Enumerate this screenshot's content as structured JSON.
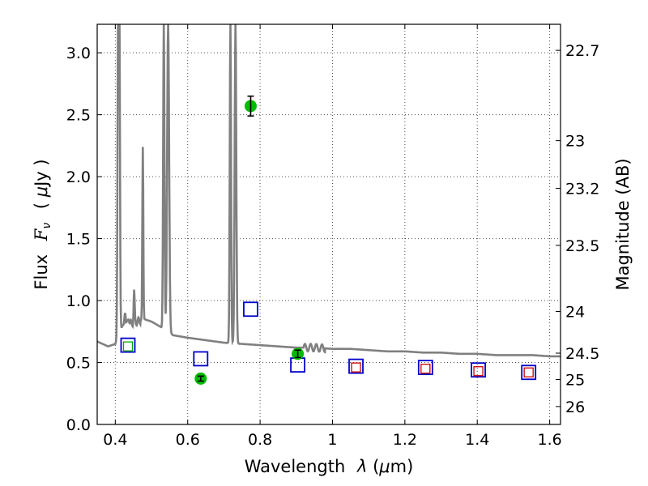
{
  "chart_data": {
    "type": "scatter",
    "x_axis": {
      "label_text": "Wavelength",
      "label_symbol": "λ",
      "label_unit_open": " (",
      "label_unit_mu": "μ",
      "label_unit_rest": "m)",
      "range": [
        0.35,
        1.63
      ],
      "ticks": [
        0.4,
        0.6,
        0.8,
        1.0,
        1.2,
        1.4,
        1.6
      ],
      "tick_labels": [
        "0.4",
        "0.6",
        "0.8",
        "1",
        "1.2",
        "1.4",
        "1.6"
      ]
    },
    "y_axis": {
      "label_text": "Flux",
      "label_symbol": "F",
      "label_subscript": "ν",
      "label_unit_open": "( ",
      "label_unit_mu": "μ",
      "label_unit_rest": "Jy )",
      "range": [
        0.0,
        3.23
      ],
      "ticks": [
        0.0,
        0.5,
        1.0,
        1.5,
        2.0,
        2.5,
        3.0
      ],
      "tick_labels": [
        "0.0",
        "0.5",
        "1.0",
        "1.5",
        "2.0",
        "2.5",
        "3.0"
      ]
    },
    "y2_axis": {
      "label": "Magnitude (AB)",
      "tick_labels": [
        "22.7",
        "23",
        "23.2",
        "23.5",
        "24",
        "24.5",
        "25",
        "26"
      ],
      "tick_magnitudes": [
        22.7,
        23.0,
        23.2,
        23.5,
        24.0,
        24.5,
        25.0,
        26.0
      ]
    },
    "grid": true,
    "series": [
      {
        "kind": "model_spectrum",
        "color": "#808080",
        "baseline": [
          [
            0.35,
            0.67
          ],
          [
            0.38,
            0.63
          ],
          [
            0.4,
            0.65
          ],
          [
            0.42,
            0.8
          ],
          [
            0.43,
            0.8
          ],
          [
            0.45,
            0.82
          ],
          [
            0.48,
            0.85
          ],
          [
            0.5,
            0.83
          ],
          [
            0.53,
            0.78
          ],
          [
            0.56,
            0.72
          ],
          [
            0.6,
            0.7
          ],
          [
            0.65,
            0.68
          ],
          [
            0.7,
            0.66
          ],
          [
            0.75,
            0.65
          ],
          [
            0.8,
            0.64
          ],
          [
            0.85,
            0.63
          ],
          [
            0.9,
            0.62
          ],
          [
            0.95,
            0.62
          ],
          [
            1.0,
            0.61
          ],
          [
            1.05,
            0.61
          ],
          [
            1.1,
            0.6
          ],
          [
            1.15,
            0.59
          ],
          [
            1.2,
            0.59
          ],
          [
            1.25,
            0.58
          ],
          [
            1.3,
            0.58
          ],
          [
            1.35,
            0.57
          ],
          [
            1.4,
            0.57
          ],
          [
            1.45,
            0.56
          ],
          [
            1.5,
            0.56
          ],
          [
            1.55,
            0.56
          ],
          [
            1.6,
            0.55
          ],
          [
            1.63,
            0.55
          ]
        ],
        "lines": [
          {
            "x": 0.408,
            "peak": 3.23,
            "width": 0.004
          },
          {
            "x": 0.411,
            "peak": 3.23,
            "width": 0.004
          },
          {
            "x": 0.427,
            "peak": 0.9,
            "width": 0.004
          },
          {
            "x": 0.437,
            "peak": 0.87,
            "width": 0.004
          },
          {
            "x": 0.452,
            "peak": 1.07,
            "width": 0.003
          },
          {
            "x": 0.476,
            "peak": 2.24,
            "width": 0.003
          },
          {
            "x": 0.534,
            "peak": 3.23,
            "width": 0.004
          },
          {
            "x": 0.546,
            "peak": 3.23,
            "width": 0.006
          },
          {
            "x": 0.718,
            "peak": 3.23,
            "width": 0.004
          },
          {
            "x": 0.732,
            "peak": 3.23,
            "width": 0.005
          }
        ]
      },
      {
        "kind": "model_photometry",
        "marker": "square",
        "color": "#0000cc",
        "points": [
          [
            0.435,
            0.64
          ],
          [
            0.636,
            0.53
          ],
          [
            0.774,
            0.93
          ],
          [
            0.904,
            0.48
          ],
          [
            1.065,
            0.47
          ],
          [
            1.257,
            0.46
          ],
          [
            1.403,
            0.44
          ],
          [
            1.542,
            0.42
          ]
        ]
      },
      {
        "kind": "model_photometry_inner",
        "marker": "square",
        "color": "#cc0000",
        "points": [
          [
            1.065,
            0.46
          ],
          [
            1.257,
            0.45
          ],
          [
            1.403,
            0.43
          ],
          [
            1.542,
            0.42
          ]
        ]
      },
      {
        "kind": "model_photometry_inner",
        "marker": "square",
        "color": "#00aa00",
        "points": [
          [
            0.435,
            0.63
          ]
        ]
      },
      {
        "kind": "observed",
        "marker": "circle",
        "color": "#00bb00",
        "points": [
          {
            "x": 0.636,
            "y": 0.37,
            "err": 0.02
          },
          {
            "x": 0.774,
            "y": 2.57,
            "err": 0.08
          },
          {
            "x": 0.904,
            "y": 0.57,
            "err": 0.03
          }
        ]
      }
    ]
  }
}
